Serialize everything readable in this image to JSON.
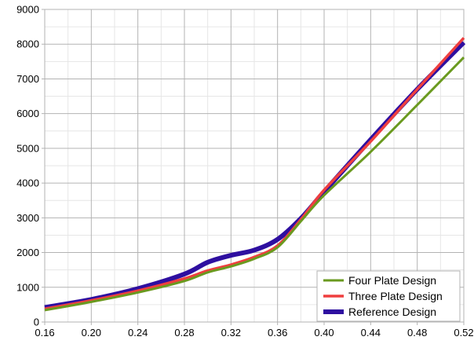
{
  "chart_data": {
    "type": "line",
    "title": "",
    "xlabel": "",
    "ylabel": "",
    "xlim": [
      0.16,
      0.52
    ],
    "ylim": [
      0,
      9000
    ],
    "x_ticks": [
      "0.16",
      "0.20",
      "0.24",
      "0.28",
      "0.32",
      "0.36",
      "0.40",
      "0.44",
      "0.48",
      "0.52"
    ],
    "y_ticks": [
      "0",
      "1000",
      "2000",
      "3000",
      "4000",
      "5000",
      "6000",
      "7000",
      "8000",
      "9000"
    ],
    "grid": true,
    "minor_grid": true,
    "legend_position": "bottom-right",
    "series": [
      {
        "name": "Four Plate Design",
        "color": "#6a9a1f",
        "points": [
          [
            0.16,
            340
          ],
          [
            0.2,
            580
          ],
          [
            0.24,
            850
          ],
          [
            0.28,
            1180
          ],
          [
            0.3,
            1430
          ],
          [
            0.32,
            1600
          ],
          [
            0.34,
            1820
          ],
          [
            0.36,
            2150
          ],
          [
            0.38,
            2900
          ],
          [
            0.4,
            3650
          ],
          [
            0.44,
            4900
          ],
          [
            0.48,
            6250
          ],
          [
            0.52,
            7620
          ]
        ]
      },
      {
        "name": "Three Plate Design",
        "color": "#ef3f3f",
        "points": [
          [
            0.16,
            380
          ],
          [
            0.2,
            620
          ],
          [
            0.24,
            900
          ],
          [
            0.28,
            1250
          ],
          [
            0.3,
            1480
          ],
          [
            0.32,
            1650
          ],
          [
            0.34,
            1870
          ],
          [
            0.36,
            2200
          ],
          [
            0.38,
            2950
          ],
          [
            0.4,
            3800
          ],
          [
            0.44,
            5200
          ],
          [
            0.48,
            6700
          ],
          [
            0.52,
            8180
          ]
        ]
      },
      {
        "name": "Reference Design",
        "color": "#2e0fa0",
        "points": [
          [
            0.16,
            420
          ],
          [
            0.2,
            650
          ],
          [
            0.24,
            960
          ],
          [
            0.28,
            1380
          ],
          [
            0.3,
            1720
          ],
          [
            0.32,
            1920
          ],
          [
            0.34,
            2070
          ],
          [
            0.36,
            2380
          ],
          [
            0.38,
            2980
          ],
          [
            0.4,
            3750
          ],
          [
            0.44,
            5250
          ],
          [
            0.48,
            6700
          ],
          [
            0.52,
            8050
          ]
        ]
      }
    ]
  }
}
